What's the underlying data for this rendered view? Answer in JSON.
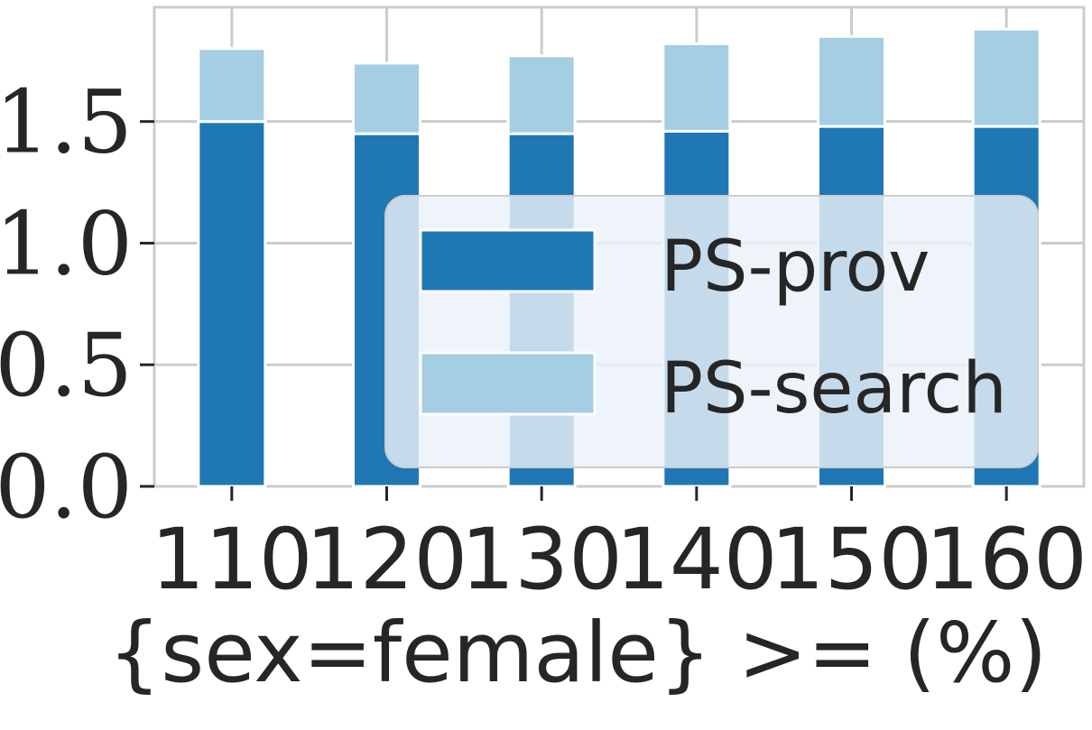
{
  "chart_data": {
    "type": "bar",
    "stacked": true,
    "categories": [
      "110",
      "120",
      "130",
      "140",
      "150",
      "160"
    ],
    "series": [
      {
        "name": "PS-prov",
        "color": "#1f77b4",
        "values": [
          1.5,
          1.45,
          1.45,
          1.46,
          1.48,
          1.48
        ]
      },
      {
        "name": "PS-search",
        "color": "#a6cee3",
        "values": [
          0.3,
          0.29,
          0.32,
          0.36,
          0.37,
          0.4
        ]
      }
    ],
    "xlabel": "{sex=female} >= (%)",
    "ylabel": "",
    "ylim": [
      0,
      1.97
    ],
    "yticks": [
      "0.0",
      "0.5",
      "1.0",
      "1.5"
    ],
    "ytick_values": [
      0,
      0.5,
      1.0,
      1.5
    ],
    "grid": true,
    "legend_position": "lower-right"
  }
}
